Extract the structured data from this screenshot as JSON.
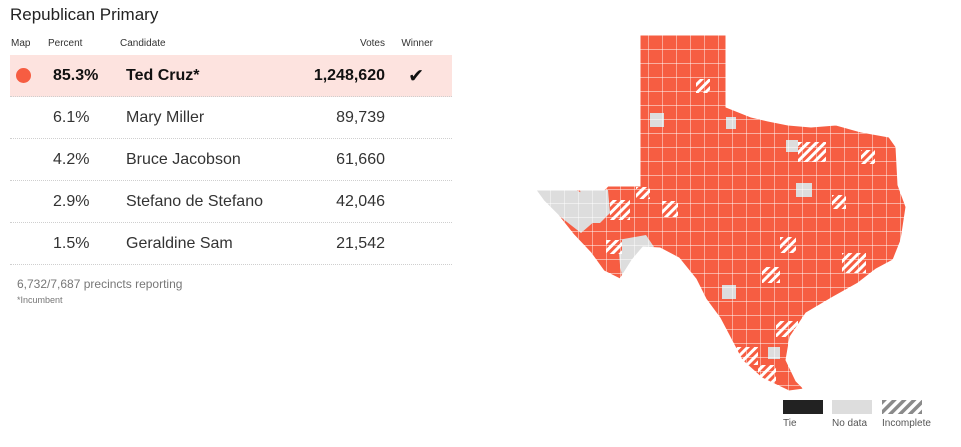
{
  "title": "Republican Primary",
  "columns": {
    "map": "Map",
    "percent": "Percent",
    "candidate": "Candidate",
    "votes": "Votes",
    "winner": "Winner"
  },
  "candidates": [
    {
      "percent": "85.3%",
      "name": "Ted Cruz*",
      "votes": "1,248,620",
      "winner": true
    },
    {
      "percent": "6.1%",
      "name": "Mary Miller",
      "votes": "89,739",
      "winner": false
    },
    {
      "percent": "4.2%",
      "name": "Bruce Jacobson",
      "votes": "61,660",
      "winner": false
    },
    {
      "percent": "2.9%",
      "name": "Stefano de Stefano",
      "votes": "42,046",
      "winner": false
    },
    {
      "percent": "1.5%",
      "name": "Geraldine Sam",
      "votes": "21,542",
      "winner": false
    }
  ],
  "winner_mark": "✔",
  "precincts_reporting": "6,732/7,687 precincts reporting",
  "incumbent_note": "*Incumbent",
  "colors": {
    "leader": "#f65d42",
    "leader_row": "#fde3df",
    "no_data": "#dddddd",
    "tie": "#222222",
    "county_border": "#ffffff"
  },
  "legend": {
    "tie": "Tie",
    "no_data": "No data",
    "incomplete": "Incomplete"
  }
}
